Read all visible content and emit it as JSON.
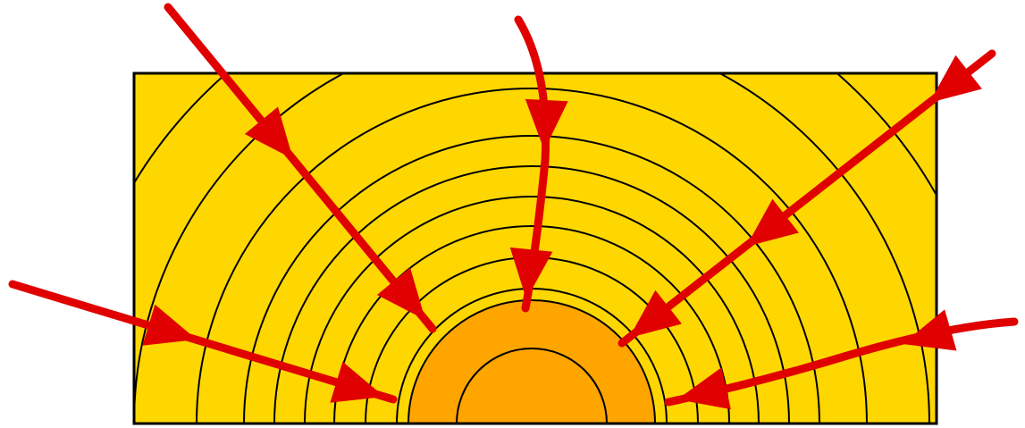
{
  "diagram": {
    "colors": {
      "background": "#ffffff",
      "field": "#ffd700",
      "core": "#ffa500",
      "contour_line": "#000000",
      "arrow": "#e00000"
    },
    "contour_rings": 12,
    "core_shells": 2,
    "arrows": [
      {
        "name": "arrow-from-left",
        "direction": "inward"
      },
      {
        "name": "arrow-from-upper-left",
        "direction": "inward"
      },
      {
        "name": "arrow-from-top",
        "direction": "inward"
      },
      {
        "name": "arrow-from-upper-right",
        "direction": "inward"
      },
      {
        "name": "arrow-from-right",
        "direction": "inward"
      }
    ]
  }
}
